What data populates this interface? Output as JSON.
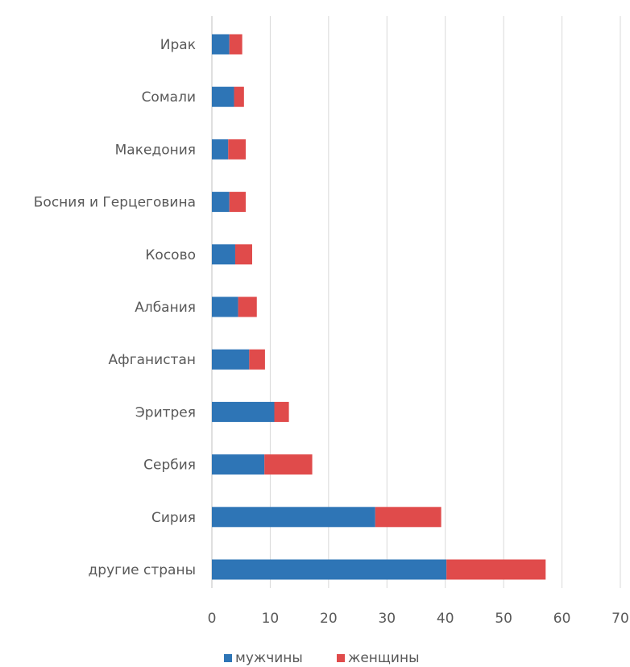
{
  "chart_data": {
    "type": "bar",
    "orientation": "horizontal",
    "stacked": true,
    "categories": [
      "Ирак",
      "Сомали",
      "Македония",
      "Босния и Герцеговина",
      "Косово",
      "Албания",
      "Афганистан",
      "Эритрея",
      "Сербия",
      "Сирия",
      "другие страны"
    ],
    "series": [
      {
        "name": "мужчины",
        "values": [
          3.0,
          3.8,
          2.8,
          3.0,
          4.0,
          4.5,
          6.4,
          10.7,
          9.0,
          28.0,
          40.2
        ]
      },
      {
        "name": "женщины",
        "values": [
          2.2,
          1.7,
          3.0,
          2.8,
          2.9,
          3.2,
          2.7,
          2.5,
          8.2,
          11.3,
          17.0
        ]
      }
    ],
    "xlim": [
      0,
      70
    ],
    "x_ticks": [
      "0",
      "10",
      "20",
      "30",
      "40",
      "50",
      "60",
      "70"
    ],
    "grid": "vertical",
    "legend_position": "bottom",
    "colors": {
      "мужчины": "#2e75b6",
      "женщины": "#e04b4b",
      "grid": "#d9d9d9",
      "axis": "#bfbfbf"
    }
  }
}
